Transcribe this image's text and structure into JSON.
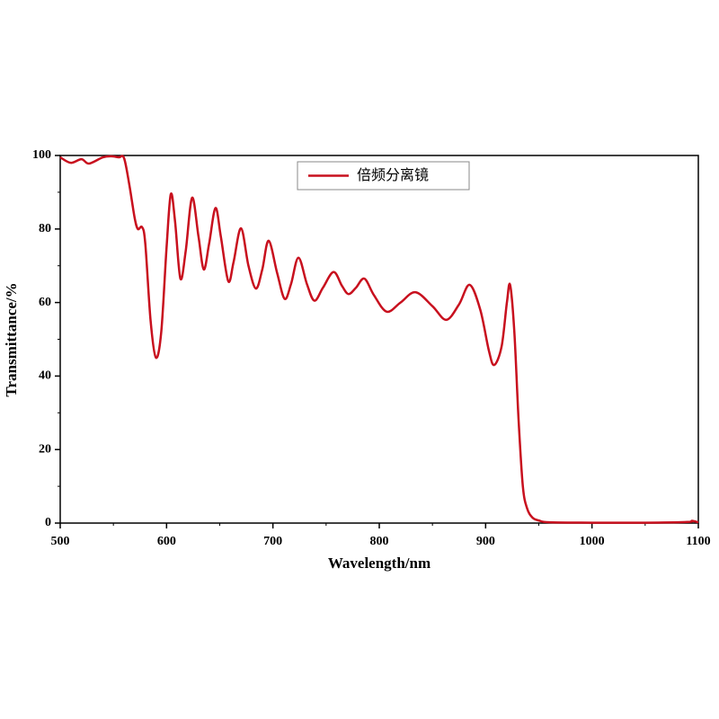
{
  "chart_data": {
    "type": "line",
    "x_label": "Wavelength/nm",
    "y_label": "Transmittance/%",
    "xlim": [
      500,
      1100
    ],
    "ylim": [
      0,
      100
    ],
    "xticks": [
      500,
      600,
      700,
      800,
      900,
      1000,
      1100
    ],
    "yticks": [
      0,
      20,
      40,
      60,
      80,
      100
    ],
    "legend": "upper center",
    "series": [
      {
        "name": "倍频分离镜",
        "color": "#c8101e",
        "x": [
          500,
          510,
          520,
          527,
          540,
          548,
          555,
          560,
          565,
          570,
          573,
          577,
          580,
          585,
          590,
          595,
          600,
          604,
          608,
          613,
          618,
          624,
          630,
          635,
          640,
          646,
          651,
          658,
          663,
          670,
          677,
          684,
          690,
          696,
          704,
          711,
          717,
          724,
          732,
          739,
          747,
          757,
          765,
          771,
          778,
          786,
          795,
          807,
          820,
          834,
          850,
          863,
          875,
          885,
          895,
          903,
          908,
          915,
          920,
          923,
          927,
          931,
          935,
          939,
          944,
          950,
          960,
          1000,
          1050,
          1090,
          1094,
          1100
        ],
        "values": [
          99.5,
          98,
          99,
          97.8,
          99.5,
          99.8,
          99.5,
          99.3,
          92,
          83,
          80,
          80.5,
          76,
          55,
          45,
          52,
          75,
          89.5,
          82,
          66.5,
          74,
          88.5,
          78,
          69,
          76,
          85.7,
          78,
          65.8,
          71,
          80.2,
          70,
          63.8,
          69,
          76.8,
          68,
          61,
          65,
          72.2,
          65,
          60.5,
          64,
          68.3,
          64.5,
          62.3,
          64,
          66.5,
          62,
          57.5,
          60,
          62.8,
          59,
          55.3,
          59.5,
          64.8,
          58,
          47,
          43,
          48,
          60,
          64.8,
          52,
          28,
          10,
          4,
          1.5,
          0.7,
          0.2,
          0.1,
          0.1,
          0.3,
          0.6,
          0.2
        ]
      }
    ]
  }
}
